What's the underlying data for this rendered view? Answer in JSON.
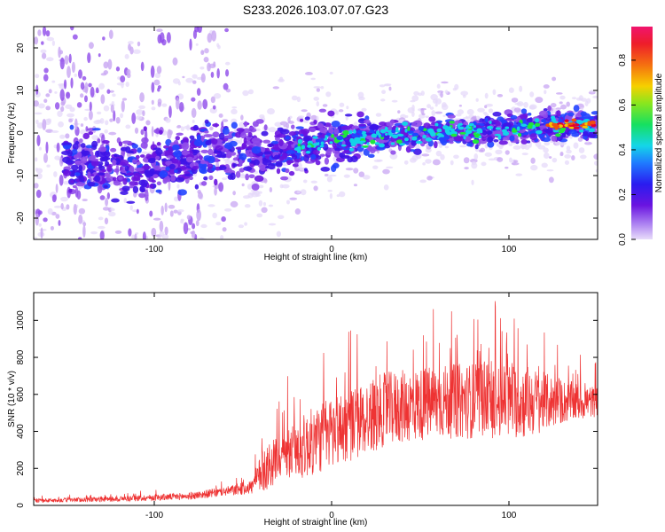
{
  "title": "S233.2026.103.07.07.G23",
  "chart_data": [
    {
      "type": "heatmap",
      "xlabel": "Height of straight line (km)",
      "ylabel": "Frequency (Hz)",
      "xlim": [
        -168,
        150
      ],
      "ylim": [
        -25,
        25
      ],
      "xticks": [
        -100,
        0,
        100
      ],
      "yticks": [
        -20,
        -10,
        0,
        10,
        20
      ],
      "colorbar": {
        "label": "Normalized spectral amplitude",
        "range": [
          0,
          0.95
        ],
        "ticks": [
          0.0,
          0.2,
          0.4,
          0.6,
          0.8
        ]
      },
      "ridge": {
        "description_points_x": [
          -140,
          -120,
          -100,
          -80,
          -60,
          -40,
          -20,
          0,
          20,
          40,
          60,
          80,
          100,
          120,
          140,
          150
        ],
        "center_freq": [
          -7,
          -9,
          -8,
          -6,
          -4,
          -5,
          -3,
          -2,
          -1,
          -0.5,
          0,
          0.5,
          1,
          1.5,
          2,
          2
        ]
      },
      "colors": [
        "#e6d9fa",
        "#c8a6f3",
        "#8f4bea",
        "#6a14e0",
        "#3d14e8",
        "#2244ff",
        "#14d2e8",
        "#1ee63c",
        "#f6c800",
        "#f05010",
        "#e10032"
      ]
    },
    {
      "type": "line",
      "xlabel": "Height of straight line (km)",
      "ylabel": "SNR (10 * v/v)",
      "xlim": [
        -168,
        150
      ],
      "ylim": [
        0,
        1150
      ],
      "xticks": [
        -100,
        0,
        100
      ],
      "yticks": [
        0,
        200,
        400,
        600,
        800,
        1000
      ],
      "color": "#ee3333",
      "envelope_x": [
        -168,
        -120,
        -80,
        -60,
        -45,
        -38,
        -30,
        -25,
        -15,
        0,
        15,
        30,
        60,
        90,
        110,
        130,
        150
      ],
      "envelope_mean": [
        25,
        35,
        50,
        75,
        100,
        200,
        250,
        280,
        320,
        400,
        450,
        520,
        560,
        570,
        560,
        560,
        560
      ],
      "envelope_spread": [
        10,
        15,
        20,
        25,
        40,
        130,
        120,
        130,
        180,
        200,
        200,
        200,
        200,
        210,
        200,
        120,
        80
      ]
    }
  ]
}
